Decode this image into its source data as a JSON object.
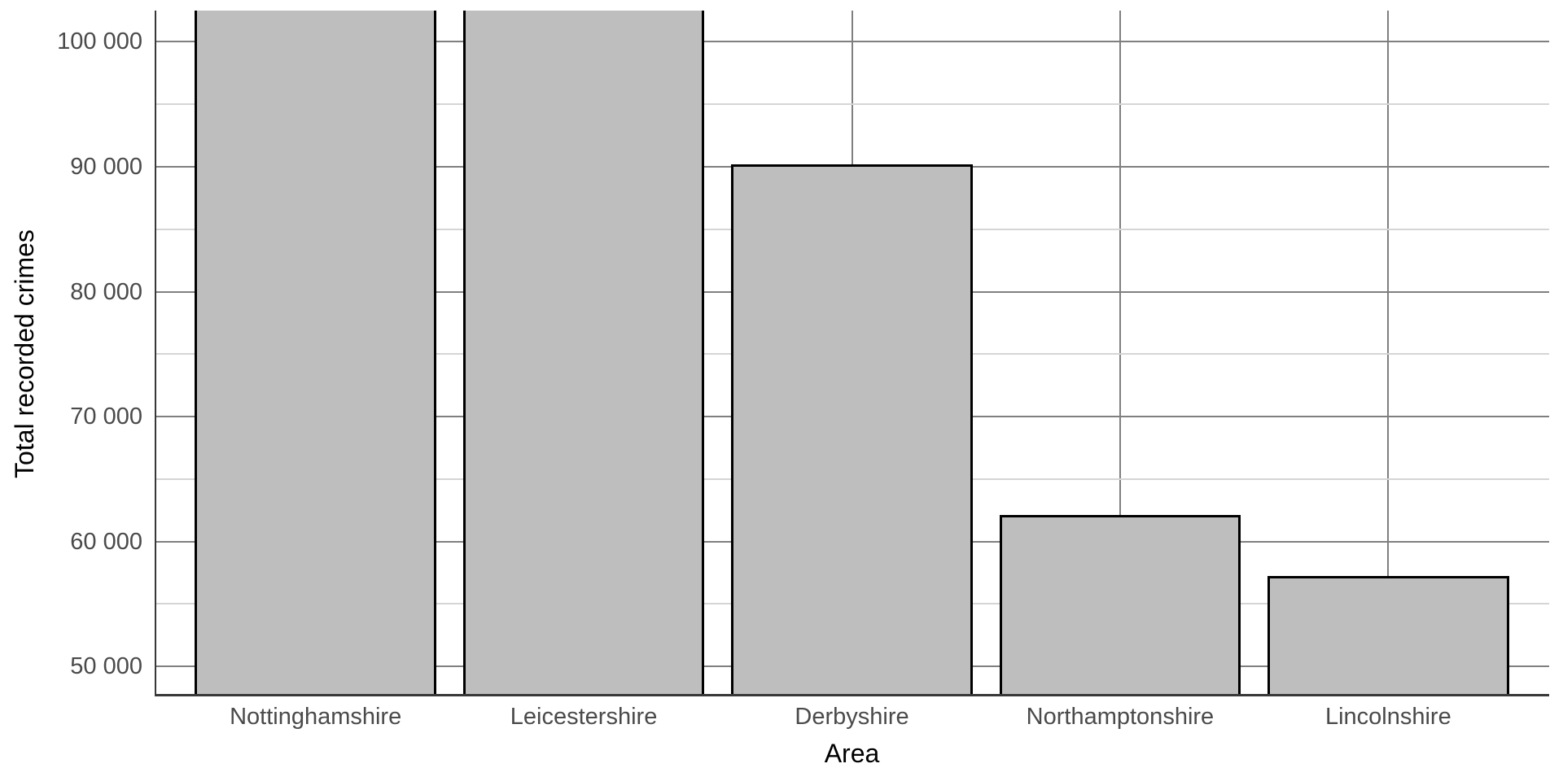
{
  "chart_data": {
    "type": "bar",
    "title": "",
    "xlabel": "Area",
    "ylabel": "Total recorded crimes",
    "categories": [
      "Nottinghamshire",
      "Leicestershire",
      "Derbyshire",
      "Northamptonshire",
      "Lincolnshire"
    ],
    "values": [
      102500,
      102500,
      90200,
      62100,
      57250
    ],
    "clipped_at_top": [
      true,
      true,
      false,
      false,
      false
    ],
    "clip_note": "Nottinghamshire and Leicestershire bars extend beyond the top of the visible axis range (> ~102 500) and are clipped at the panel top with no top border",
    "ylim": [
      47800,
      102500
    ],
    "y_major_ticks": [
      {
        "value": 100000,
        "label": "100 000"
      },
      {
        "value": 90000,
        "label": "90 000"
      },
      {
        "value": 80000,
        "label": "80 000"
      },
      {
        "value": 70000,
        "label": "70 000"
      },
      {
        "value": 60000,
        "label": "60 000"
      },
      {
        "value": 50000,
        "label": "50 000"
      }
    ],
    "y_minor_ticks": [
      95000,
      85000,
      75000,
      65000,
      55000
    ],
    "grid": {
      "horizontal_major": true,
      "horizontal_minor": true,
      "vertical_major_at_category_centers": true,
      "vertical_minor": false
    },
    "legend": "none",
    "bar_width_fraction": 0.9,
    "colors": {
      "bar_fill": "#bebebe",
      "bar_border": "#000000",
      "grid_major": "#7f7f7f",
      "grid_minor": "#d5d5d5",
      "axis_line": "#383838",
      "tick_text": "#4a4a4a",
      "title_text": "#000000",
      "background": "#ffffff"
    }
  }
}
